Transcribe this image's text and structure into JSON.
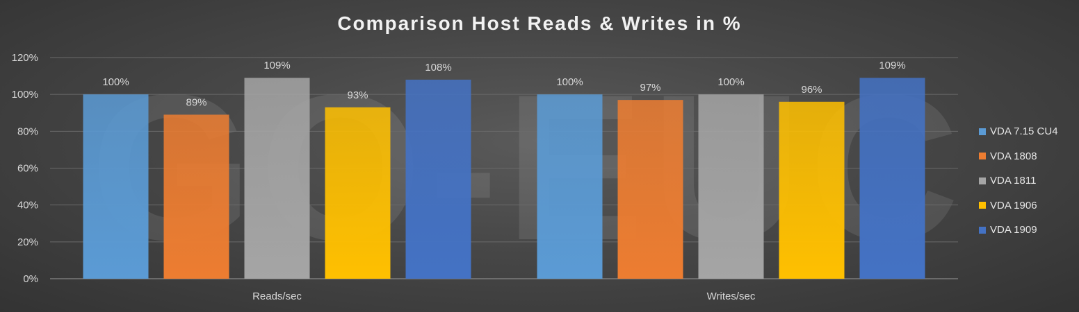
{
  "chart_data": {
    "type": "bar",
    "title": "Comparison Host Reads & Writes in %",
    "categories": [
      "Reads/sec",
      "Writes/sec"
    ],
    "series": [
      {
        "name": "VDA 7.15 CU4",
        "values": [
          100,
          100
        ],
        "labels": [
          "100%",
          "100%"
        ],
        "color": "#5b9bd5"
      },
      {
        "name": "VDA 1808",
        "values": [
          89,
          97
        ],
        "labels": [
          "89%",
          "97%"
        ],
        "color": "#ed7d31"
      },
      {
        "name": "VDA 1811",
        "values": [
          109,
          100
        ],
        "labels": [
          "109%",
          "100%"
        ],
        "color": "#a5a5a5"
      },
      {
        "name": "VDA 1906",
        "values": [
          93,
          96
        ],
        "labels": [
          "93%",
          "96%"
        ],
        "color": "#ffc000"
      },
      {
        "name": "VDA 1909",
        "values": [
          108,
          109
        ],
        "labels": [
          "108%",
          "109%"
        ],
        "color": "#4472c4"
      }
    ],
    "ylim": [
      0,
      120
    ],
    "yticks": [
      0,
      20,
      40,
      60,
      80,
      100,
      120
    ],
    "ytick_labels": [
      "0%",
      "20%",
      "40%",
      "60%",
      "80%",
      "100%",
      "120%"
    ],
    "grid": true,
    "legend_position": "right",
    "xlabel": "",
    "ylabel": ""
  }
}
